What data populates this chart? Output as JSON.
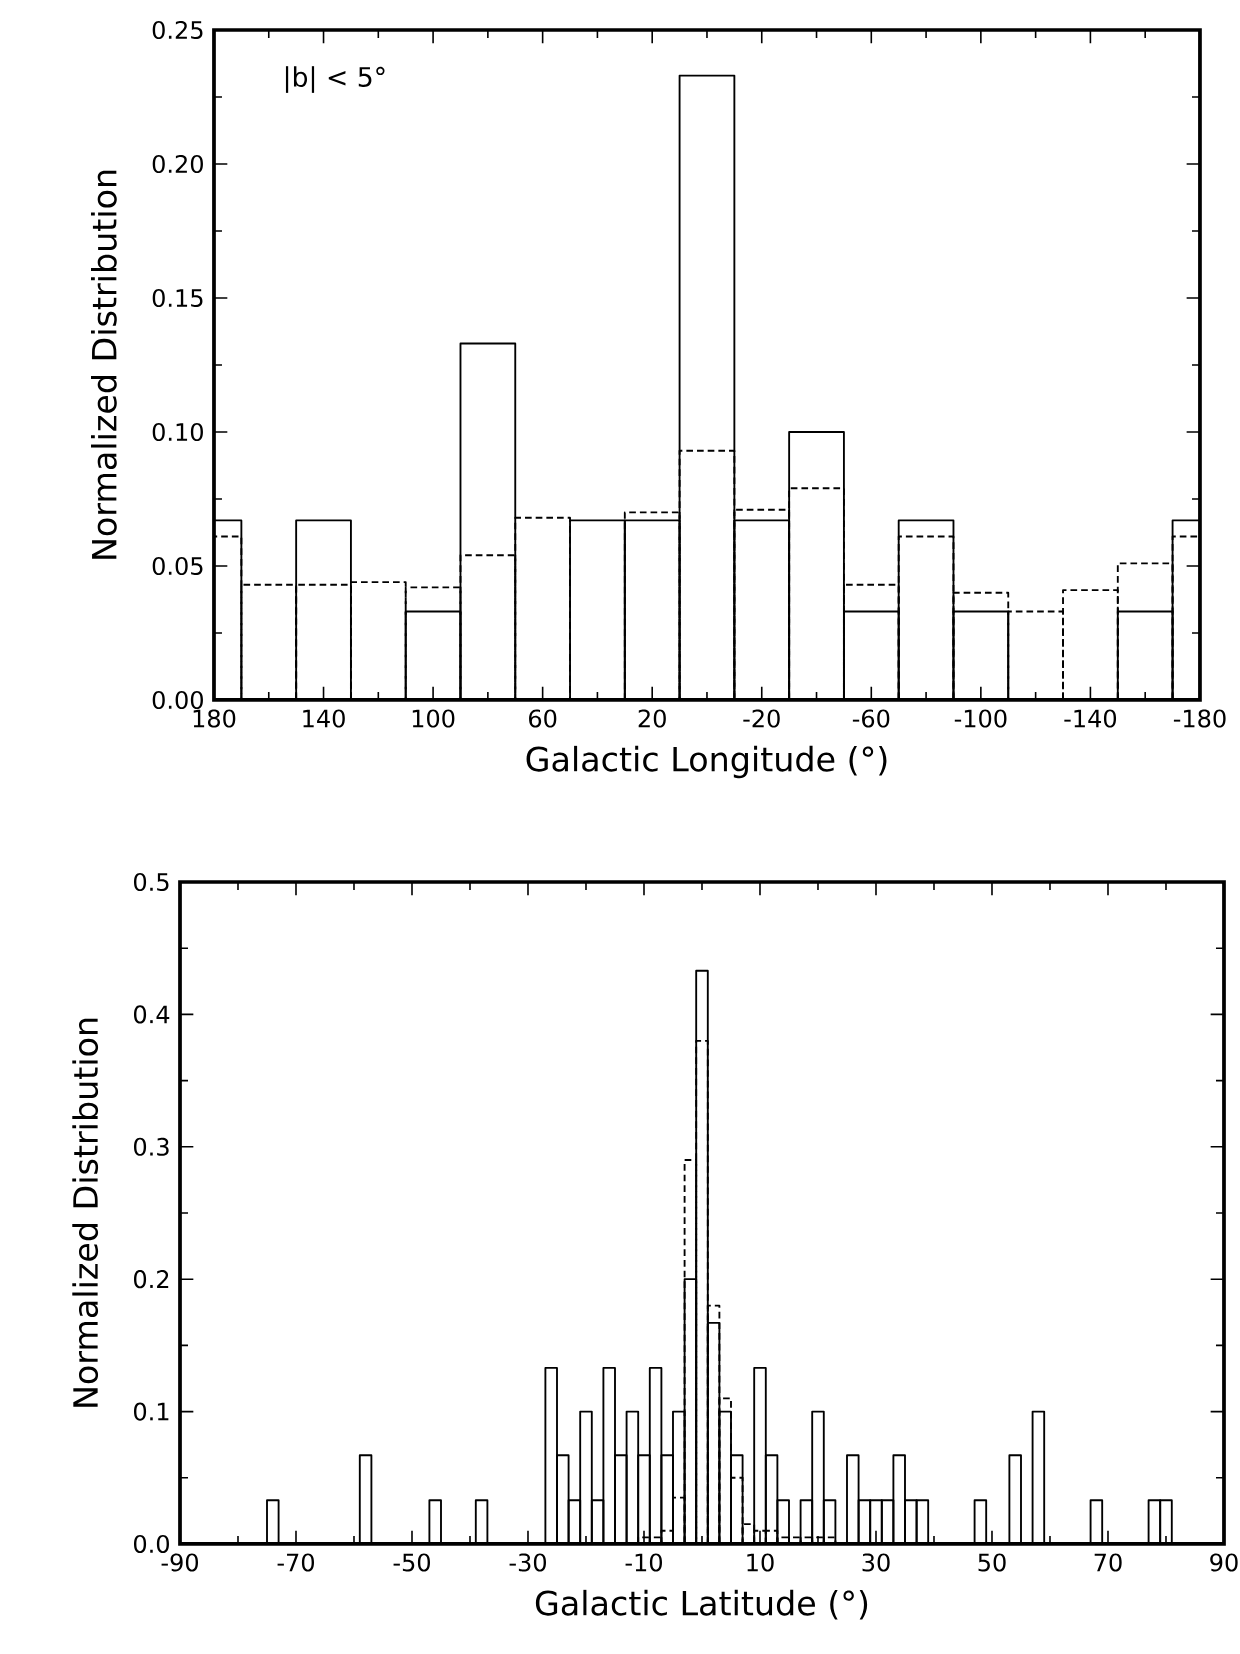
{
  "chart_data": [
    {
      "type": "histogram",
      "xlabel": "Galactic Longitude (°)",
      "ylabel": "Normalized Distribution",
      "annotations": [
        "|b| < 5°"
      ],
      "xlim": [
        180,
        -180
      ],
      "ylim": [
        0,
        0.25
      ],
      "xticks": [
        180,
        {
          "value": 160,
          "label": null
        },
        140,
        {
          "value": 120,
          "label": null
        },
        100,
        {
          "value": 80,
          "label": null
        },
        60,
        {
          "value": 40,
          "label": null
        },
        20,
        {
          "value": 0,
          "label": null
        },
        -20,
        {
          "value": -40,
          "label": null
        },
        -60,
        {
          "value": -80,
          "label": null
        },
        -100,
        {
          "value": -120,
          "label": null
        },
        -140,
        {
          "value": -160,
          "label": null
        },
        -180
      ],
      "yticks": [
        {
          "value": 0,
          "label": "0.00"
        },
        {
          "value": 0.025,
          "label": null
        },
        {
          "value": 0.05,
          "label": "0.05"
        },
        {
          "value": 0.075,
          "label": null
        },
        {
          "value": 0.1,
          "label": "0.10"
        },
        {
          "value": 0.125,
          "label": null
        },
        {
          "value": 0.15,
          "label": "0.15"
        },
        {
          "value": 0.175,
          "label": null
        },
        {
          "value": 0.2,
          "label": "0.20"
        },
        {
          "value": 0.225,
          "label": null
        },
        {
          "value": 0.25,
          "label": "0.25"
        }
      ],
      "bins": [
        180,
        170,
        150,
        130,
        110,
        90,
        70,
        50,
        30,
        10,
        -10,
        -30,
        -50,
        -70,
        -90,
        -110,
        -130,
        -150,
        -170,
        -180
      ],
      "series": [
        {
          "color": "#000000",
          "line_style": "solid",
          "values": [
            0.067,
            0,
            0.067,
            0,
            0.033,
            0.133,
            0,
            0.067,
            0.067,
            0.233,
            0.067,
            0.1,
            0.033,
            0.067,
            0.033,
            0,
            0,
            0.033,
            0.067
          ]
        },
        {
          "color": "#000000",
          "line_style": "dashed",
          "values": [
            0.061,
            0.043,
            0.043,
            0.044,
            0.042,
            0.054,
            0.068,
            null,
            0.07,
            0.093,
            0.071,
            0.079,
            0.043,
            0.061,
            0.04,
            0.033,
            0.041,
            0.051,
            0.061
          ]
        }
      ]
    },
    {
      "type": "histogram",
      "xlabel": "Galactic Latitude (°)",
      "ylabel": "Normalized Distribution",
      "xlim": [
        -90,
        90
      ],
      "ylim": [
        0,
        0.5
      ],
      "xticks": [
        -90,
        {
          "value": -80,
          "label": null
        },
        -70,
        {
          "value": -60,
          "label": null
        },
        -50,
        {
          "value": -40,
          "label": null
        },
        -30,
        {
          "value": -20,
          "label": null
        },
        -10,
        {
          "value": 0,
          "label": null
        },
        10,
        {
          "value": 20,
          "label": null
        },
        30,
        {
          "value": 40,
          "label": null
        },
        50,
        {
          "value": 60,
          "label": null
        },
        70,
        {
          "value": 80,
          "label": null
        },
        90
      ],
      "yticks": [
        {
          "value": 0,
          "label": "0.0"
        },
        {
          "value": 0.05,
          "label": null
        },
        0.1,
        {
          "value": 0.15,
          "label": null
        },
        0.2,
        {
          "value": 0.25,
          "label": null
        },
        0.3,
        {
          "value": 0.35,
          "label": null
        },
        0.4,
        {
          "value": 0.45,
          "label": null
        },
        0.5
      ],
      "bins": [
        -75,
        -73,
        -71,
        -69,
        -67,
        -65,
        -63,
        -61,
        -59,
        -57,
        -55,
        -53,
        -51,
        -49,
        -47,
        -45,
        -43,
        -41,
        -39,
        -37,
        -35,
        -33,
        -31,
        -29,
        -27,
        -25,
        -23,
        -21,
        -19,
        -17,
        -15,
        -13,
        -11,
        -9,
        -7,
        -5,
        -3,
        -1,
        1,
        3,
        5,
        7,
        9,
        11,
        13,
        15,
        17,
        19,
        21,
        23,
        25,
        27,
        29,
        31,
        33,
        35,
        37,
        39,
        41,
        43,
        45,
        47,
        49,
        51,
        53,
        55,
        57,
        59,
        61,
        63,
        65,
        67,
        69,
        71,
        73,
        75,
        77,
        79,
        81
      ],
      "series": [
        {
          "color": "#000000",
          "line_style": "solid",
          "values": [
            0.033,
            0,
            0,
            0,
            0,
            0,
            0,
            0,
            0.067,
            0,
            0,
            0,
            0,
            0,
            0.033,
            0,
            0,
            0,
            0.033,
            0,
            0,
            0,
            0,
            0,
            0.133,
            0.067,
            0.033,
            0.1,
            0.033,
            0.133,
            0.067,
            0.1,
            0.067,
            0.133,
            0.067,
            0.1,
            0.2,
            0.433,
            0.167,
            0.1,
            0.067,
            0,
            0.133,
            0.067,
            0.033,
            0,
            0.033,
            0.1,
            0.033,
            0,
            0.067,
            0.033,
            0.033,
            0.033,
            0.067,
            0.033,
            0.033,
            0,
            0,
            0,
            0,
            0.033,
            0,
            0,
            0.067,
            0,
            0.1,
            0,
            0,
            0,
            0,
            0.033,
            0,
            0,
            0,
            0,
            0.033,
            0.033
          ]
        },
        {
          "color": "#000000",
          "line_style": "dashed",
          "values": [
            0,
            0,
            0,
            0,
            0,
            0,
            0,
            0,
            0,
            0,
            0,
            0,
            0,
            0,
            0,
            0,
            0,
            0,
            0,
            0,
            0,
            0,
            0,
            0,
            0,
            0,
            0,
            0,
            0,
            0,
            0,
            0,
            0.005,
            0.005,
            0.01,
            0.035,
            0.29,
            0.38,
            0.18,
            0.11,
            0.05,
            0.015,
            0.01,
            0.01,
            0.005,
            0.005,
            0.005,
            0.005,
            0.005,
            0,
            0,
            0,
            0,
            0,
            0,
            0,
            0,
            0,
            0,
            0,
            0,
            0,
            0,
            0,
            0,
            0,
            0,
            0,
            0,
            0,
            0,
            0,
            0,
            0,
            0,
            0,
            0,
            0
          ]
        }
      ]
    }
  ]
}
